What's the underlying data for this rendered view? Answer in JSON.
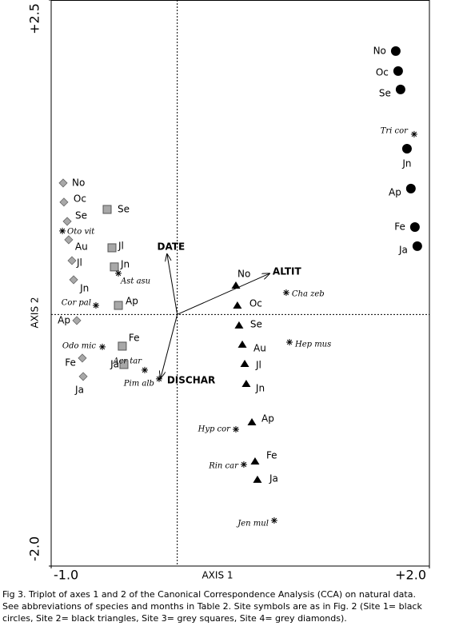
{
  "chart_data": {
    "type": "scatter",
    "xlabel": "AXIS 1",
    "ylabel": "AXIS 2",
    "xlim": [
      -1.0,
      2.0
    ],
    "ylim": [
      -2.0,
      2.5
    ],
    "xticks": [
      {
        "value": -1.0,
        "label": "-1.0"
      },
      {
        "value": 2.0,
        "label": "+2.0"
      }
    ],
    "yticks": [
      {
        "value": -2.0,
        "label": "-2.0"
      },
      {
        "value": 2.5,
        "label": "+2.5"
      }
    ],
    "zero_lines": true,
    "series": [
      {
        "marker": "circle",
        "color": "#000000",
        "labels": [
          "No",
          "Oc",
          "Se",
          "Jn",
          "Ap",
          "Fe",
          "Ja"
        ],
        "x": [
          1.733,
          1.752,
          1.771,
          1.822,
          1.853,
          1.885,
          1.904
        ],
        "y": [
          2.094,
          1.935,
          1.789,
          1.318,
          1.001,
          0.695,
          0.543
        ]
      },
      {
        "marker": "triangle",
        "color": "#000000",
        "labels": [
          "No",
          "Oc",
          "Se",
          "Au",
          "Jl",
          "Jn",
          "Ap",
          "Fe",
          "Ja"
        ],
        "x": [
          0.465,
          0.477,
          0.49,
          0.516,
          0.535,
          0.547,
          0.592,
          0.617,
          0.636
        ],
        "y": [
          0.231,
          0.072,
          -0.086,
          -0.239,
          -0.392,
          -0.551,
          -0.856,
          -1.167,
          -1.313
        ]
      },
      {
        "marker": "square",
        "color": "#a8a8a8",
        "labels": [
          "Se",
          "Jl",
          "Jn",
          "Ap",
          "Fe",
          "Ja"
        ],
        "x": [
          -0.556,
          -0.518,
          -0.499,
          -0.467,
          -0.436,
          -0.423
        ],
        "y": [
          0.835,
          0.53,
          0.378,
          0.072,
          -0.252,
          -0.398
        ]
      },
      {
        "marker": "diamond",
        "color": "#a8a8a8",
        "labels": [
          "No",
          "Oc",
          "Se",
          "Au",
          "Jl",
          "Jn",
          "Ap",
          "Fe",
          "Ja"
        ],
        "x": [
          -0.905,
          -0.899,
          -0.873,
          -0.861,
          -0.835,
          -0.822,
          -0.797,
          -0.753,
          -0.746
        ],
        "y": [
          1.045,
          0.893,
          0.74,
          0.594,
          0.428,
          0.276,
          -0.048,
          -0.347,
          -0.493
        ]
      },
      {
        "marker": "asterisk",
        "color": "#000000",
        "label_style": "italic",
        "labels": [
          "Tri cor",
          "Oto vit",
          "Ast asu",
          "Cor pal",
          "Cha zeb",
          "Hep mus",
          "Odo mic",
          "Acr tar",
          "Pim alb",
          "Hyp cor",
          "Rin car",
          "Jen mul"
        ],
        "x": [
          1.879,
          -0.911,
          -0.467,
          -0.645,
          0.864,
          0.89,
          -0.594,
          -0.258,
          -0.144,
          0.465,
          0.528,
          0.769
        ],
        "y": [
          1.433,
          0.664,
          0.327,
          0.072,
          0.174,
          -0.22,
          -0.258,
          -0.442,
          -0.512,
          -0.913,
          -1.193,
          -1.638
        ]
      }
    ],
    "vectors": [
      {
        "label": "DATE",
        "x": -0.081,
        "y": 0.479
      },
      {
        "label": "ALTIT",
        "x": 0.731,
        "y": 0.325
      },
      {
        "label": "DISCHAR",
        "x": -0.132,
        "y": -0.506
      }
    ],
    "caption": [
      "Fig 3. Triplot of axes 1 and 2 of the Canonical Correspondence Analysis (CCA) on natural data.",
      "See abbreviations of species and months in Table 2. Site symbols are as in Fig. 2 (Site 1= black",
      "circles, Site 2= black triangles, Site 3= grey squares, Site 4= grey diamonds)."
    ]
  }
}
